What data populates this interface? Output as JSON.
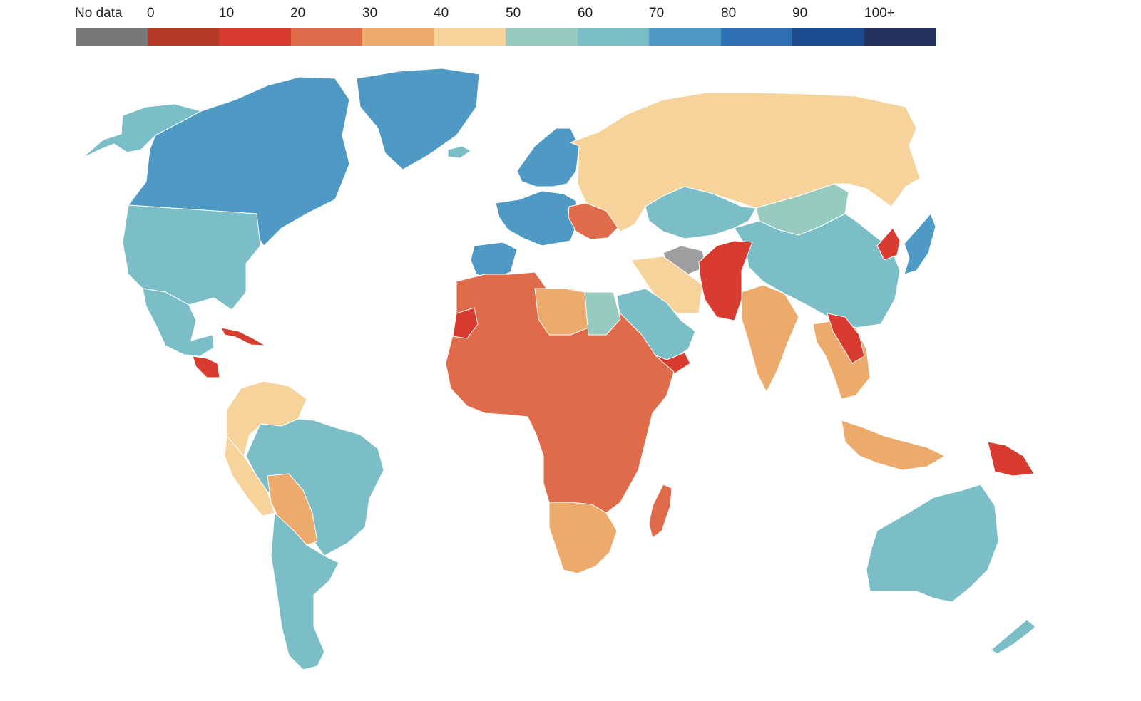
{
  "legend": {
    "no_data_label": "No data",
    "tick_labels": [
      "0",
      "10",
      "20",
      "30",
      "40",
      "50",
      "60",
      "70",
      "80",
      "90",
      "100+"
    ],
    "swatch_colors": [
      "#777777",
      "#b33a27",
      "#d83b2f",
      "#e06b4b",
      "#ecaa6c",
      "#f5d39a",
      "#98cbbf",
      "#7bbec8",
      "#4f99c5",
      "#2f70b5",
      "#1b4a8e",
      "#223160"
    ]
  },
  "map_colors": {
    "no_data_region": "#9e9e9e",
    "ocean": "#ffffff"
  },
  "regions": [
    {
      "name": "Alaska",
      "bucket": 7
    },
    {
      "name": "Canada",
      "bucket": 8
    },
    {
      "name": "Greenland",
      "bucket": 8
    },
    {
      "name": "United States",
      "bucket": 7
    },
    {
      "name": "Mexico",
      "bucket": 7
    },
    {
      "name": "Cuba",
      "bucket": 2
    },
    {
      "name": "Central America",
      "bucket": 2
    },
    {
      "name": "Venezuela / Colombia",
      "bucket": 5
    },
    {
      "name": "Brazil",
      "bucket": 7
    },
    {
      "name": "Peru",
      "bucket": 5
    },
    {
      "name": "Bolivia / Paraguay",
      "bucket": 4
    },
    {
      "name": "Argentina / Chile",
      "bucket": 7
    },
    {
      "name": "Iceland",
      "bucket": 7
    },
    {
      "name": "Scandinavia",
      "bucket": 8
    },
    {
      "name": "Western Europe",
      "bucket": 8
    },
    {
      "name": "Spain",
      "bucket": 8
    },
    {
      "name": "Ukraine",
      "bucket": 3
    },
    {
      "name": "Russia",
      "bucket": 5
    },
    {
      "name": "Kazakhstan",
      "bucket": 7
    },
    {
      "name": "Mongolia",
      "bucket": 6
    },
    {
      "name": "China",
      "bucket": 7
    },
    {
      "name": "Japan",
      "bucket": 8
    },
    {
      "name": "Korean peninsula",
      "bucket": 2
    },
    {
      "name": "Turkmenistan",
      "bucket": 0
    },
    {
      "name": "Iran",
      "bucket": 5
    },
    {
      "name": "Afghanistan / Pakistan",
      "bucket": 2
    },
    {
      "name": "Arabian Peninsula",
      "bucket": 7
    },
    {
      "name": "Yemen",
      "bucket": 2
    },
    {
      "name": "India",
      "bucket": 4
    },
    {
      "name": "Southeast Asia",
      "bucket": 4
    },
    {
      "name": "Laos / Myanmar",
      "bucket": 2
    },
    {
      "name": "North Africa / Sub-Saharan Africa",
      "bucket": 3
    },
    {
      "name": "Libya",
      "bucket": 4
    },
    {
      "name": "Egypt",
      "bucket": 6
    },
    {
      "name": "Western Sahara",
      "bucket": 2
    },
    {
      "name": "Southern Africa",
      "bucket": 4
    },
    {
      "name": "Madagascar",
      "bucket": 3
    },
    {
      "name": "Indonesia",
      "bucket": 4
    },
    {
      "name": "Papua New Guinea",
      "bucket": 2
    },
    {
      "name": "Australia",
      "bucket": 7
    },
    {
      "name": "New Zealand",
      "bucket": 7
    }
  ]
}
